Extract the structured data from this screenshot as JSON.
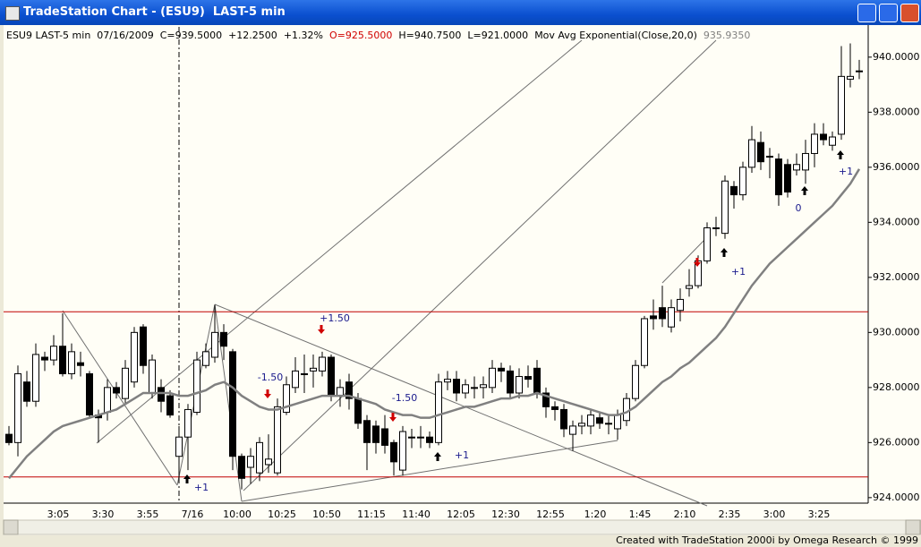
{
  "window_title": "TradeStation Chart - (ESU9)  LAST-5 min",
  "info": {
    "symbol": "ESU9 LAST-5 min",
    "date": "07/16/2009",
    "close": "C=939.5000",
    "change": "+12.2500",
    "change_pct": "+1.32%",
    "open": "O=925.5000",
    "high": "H=940.7500",
    "low": "L=921.0000",
    "indicator_value": "935.9350"
  },
  "footer": "Created with TradeStation 2000i by Omega Research © 1999",
  "chart_data": {
    "type": "candlestick",
    "categories": [
      null,
      null,
      null,
      null,
      null,
      "3:05",
      null,
      null,
      null,
      null,
      "3:30",
      null,
      null,
      null,
      null,
      "3:55",
      null,
      null,
      null,
      null,
      "7/16",
      null,
      null,
      null,
      null,
      "10:00",
      null,
      null,
      null,
      null,
      "10:25",
      null,
      null,
      null,
      null,
      "10:50",
      null,
      null,
      null,
      null,
      "11:15",
      null,
      null,
      null,
      null,
      "11:40",
      null,
      null,
      null,
      null,
      "12:05",
      null,
      null,
      null,
      null,
      "12:30",
      null,
      null,
      null,
      null,
      "12:55",
      null,
      null,
      null,
      null,
      "1:20",
      null,
      null,
      null,
      null,
      "1:45",
      null,
      null,
      null,
      null,
      "2:10",
      null,
      null,
      null,
      null,
      "2:35",
      null,
      null,
      null,
      null,
      "3:00",
      null,
      null,
      null,
      null,
      "3:25",
      null,
      null,
      null,
      null,
      null
    ],
    "open": [
      926.3,
      926,
      928.2,
      927.5,
      929.1,
      929,
      929.5,
      928.5,
      928.9,
      928.5,
      927,
      927.1,
      928,
      927.6,
      928.2,
      930.2,
      927.8,
      928,
      927.7,
      925.5,
      926.2,
      927.1,
      928.8,
      929.1,
      930,
      929.3,
      925.5,
      925.1,
      924.9,
      925.2,
      924.9,
      927.1,
      928,
      928.5,
      928.6,
      928.6,
      929.1,
      927.7,
      928.2,
      927.6,
      926.8,
      926.6,
      926.5,
      926,
      925,
      926.2,
      926.2,
      926.2,
      926,
      928.2,
      928.3,
      927.8,
      928,
      928,
      928,
      928.7,
      928.6,
      927.8,
      928.4,
      928.7,
      927.8,
      927.3,
      927.2,
      926.3,
      926.6,
      926.6,
      926.9,
      926.7,
      926.5,
      926.8,
      927.6,
      928.8,
      930.6,
      930.9,
      930.2,
      930.8,
      931.6,
      931.7,
      932.6,
      933.8,
      933.6,
      935.3,
      935,
      936,
      936.9,
      936.4,
      936.3,
      936.1,
      935.9,
      935.9,
      936.5,
      937.2,
      936.8,
      937.2,
      939.2,
      939.5
    ],
    "high": [
      926.6,
      928.8,
      928.6,
      929.6,
      929.3,
      929.9,
      930.7,
      929.6,
      929.3,
      928.6,
      927.2,
      928.3,
      928.2,
      929,
      930.2,
      930.3,
      929.2,
      928.3,
      927.9,
      926.6,
      927.4,
      929.3,
      929.6,
      931,
      930.3,
      929.4,
      925.6,
      925.8,
      926.2,
      926.3,
      927.6,
      928.4,
      929.1,
      929.2,
      929.2,
      929.3,
      929.2,
      928.3,
      928.5,
      927.8,
      927,
      926.8,
      927,
      926.1,
      926.6,
      926.5,
      926.6,
      926.4,
      928.5,
      928.6,
      928.6,
      928.3,
      928.4,
      928.4,
      929,
      928.9,
      928.8,
      928.7,
      928.8,
      929,
      928,
      927.5,
      927.4,
      926.8,
      927,
      927.2,
      927.1,
      927,
      927.2,
      927.8,
      929,
      930.6,
      931.2,
      931.7,
      931.2,
      931.6,
      932.3,
      932.8,
      934,
      934.2,
      935.7,
      935.5,
      936.2,
      937.5,
      937.3,
      936.7,
      936.5,
      936.3,
      936.5,
      937,
      937.6,
      937.6,
      937.3,
      940.4,
      940.5,
      939.9
    ],
    "low": [
      925.9,
      925.5,
      927.3,
      927.3,
      928.6,
      928.8,
      928.4,
      928.3,
      928.4,
      926.9,
      926,
      926.8,
      927.6,
      927.4,
      928,
      928.5,
      927.6,
      927.1,
      926.9,
      924.6,
      925,
      927,
      928.7,
      928.9,
      929,
      925,
      924.3,
      924.5,
      924.6,
      924.9,
      924.8,
      927,
      927.8,
      927.8,
      928,
      928.4,
      927.5,
      927.3,
      927.2,
      926.5,
      925,
      925.6,
      925.6,
      924.8,
      924.8,
      925.8,
      925.8,
      925.8,
      925.9,
      927.9,
      927.5,
      927.6,
      927.6,
      927.6,
      927.8,
      928.2,
      927.6,
      927.6,
      928,
      927.6,
      926.9,
      926.8,
      926.2,
      925.7,
      926.3,
      926.3,
      926.5,
      926.3,
      926.1,
      926.6,
      927.5,
      928.7,
      930.1,
      930.2,
      930,
      930.4,
      931.3,
      931.6,
      932.5,
      933.5,
      933.4,
      934.5,
      934.8,
      935.8,
      935.9,
      935.6,
      934.6,
      934.9,
      935.7,
      935.4,
      936,
      936.8,
      936.6,
      937,
      938.9,
      939.2
    ],
    "close": [
      926,
      928.5,
      927.5,
      929.2,
      929,
      929.5,
      928.5,
      929.3,
      928.8,
      927,
      926.9,
      928,
      927.8,
      928.7,
      930,
      928.8,
      929,
      927.5,
      927,
      926.2,
      927.2,
      929,
      929.3,
      930,
      929.5,
      925.5,
      924.7,
      925.5,
      926,
      925.4,
      927.3,
      928.1,
      928.6,
      928.5,
      928.7,
      929.1,
      927.7,
      928,
      927.6,
      926.7,
      926,
      926,
      925.9,
      925.3,
      926.4,
      926.2,
      926.2,
      926,
      928.2,
      928.3,
      927.8,
      928.1,
      928,
      928.1,
      928.7,
      928.6,
      927.8,
      928.4,
      928.3,
      927.8,
      927.3,
      927.2,
      926.5,
      926.6,
      926.7,
      927,
      926.7,
      926.7,
      927,
      927.6,
      928.8,
      930.5,
      930.5,
      930.5,
      930.9,
      931.2,
      931.7,
      932.6,
      933.8,
      933.8,
      935.5,
      935,
      936,
      937,
      936.2,
      936.4,
      935,
      935.1,
      936.1,
      936.5,
      937.2,
      937,
      937.1,
      939.3,
      939.3,
      939.5
    ],
    "moving_average": {
      "name": "Mov Avg Exponential(Close,20,0)",
      "color": "#808080",
      "values": [
        924.7,
        925.1,
        925.5,
        925.8,
        926.1,
        926.4,
        926.6,
        926.7,
        926.8,
        926.9,
        927.0,
        927.1,
        927.2,
        927.4,
        927.6,
        927.8,
        927.8,
        927.8,
        927.8,
        927.7,
        927.7,
        927.8,
        927.9,
        928.1,
        928.2,
        928.0,
        927.7,
        927.5,
        927.3,
        927.2,
        927.2,
        927.3,
        927.4,
        927.5,
        927.6,
        927.7,
        927.7,
        927.7,
        927.7,
        927.6,
        927.5,
        927.4,
        927.2,
        927.1,
        927.0,
        927.0,
        926.9,
        926.9,
        927.0,
        927.1,
        927.2,
        927.3,
        927.3,
        927.4,
        927.5,
        927.6,
        927.6,
        927.7,
        927.7,
        927.8,
        927.7,
        927.6,
        927.5,
        927.4,
        927.3,
        927.2,
        927.1,
        927.0,
        927.0,
        927.1,
        927.3,
        927.6,
        927.9,
        928.2,
        928.4,
        928.7,
        928.9,
        929.2,
        929.5,
        929.8,
        930.2,
        930.7,
        931.2,
        931.7,
        932.1,
        932.5,
        932.8,
        933.1,
        933.4,
        933.7,
        934.0,
        934.3,
        934.6,
        935.0,
        935.4,
        935.935
      ]
    },
    "horizontal_lines": [
      930.75,
      924.75
    ],
    "annotations": [
      "+1",
      "-1.50",
      "+1.50",
      "-1.50",
      "+1",
      "+1",
      "0",
      "+1"
    ],
    "ylim": [
      923.8,
      941.1
    ],
    "yticks": [
      {
        "value": 924,
        "label": "924.0000"
      },
      {
        "value": 926,
        "label": "926.0000"
      },
      {
        "value": 928,
        "label": "928.0000"
      },
      {
        "value": 930,
        "label": "930.0000"
      },
      {
        "value": 932,
        "label": "932.0000"
      },
      {
        "value": 934,
        "label": "934.0000"
      },
      {
        "value": 936,
        "label": "936.0000"
      },
      {
        "value": 938,
        "label": "938.0000"
      },
      {
        "value": 940,
        "label": "940.0000"
      }
    ]
  }
}
